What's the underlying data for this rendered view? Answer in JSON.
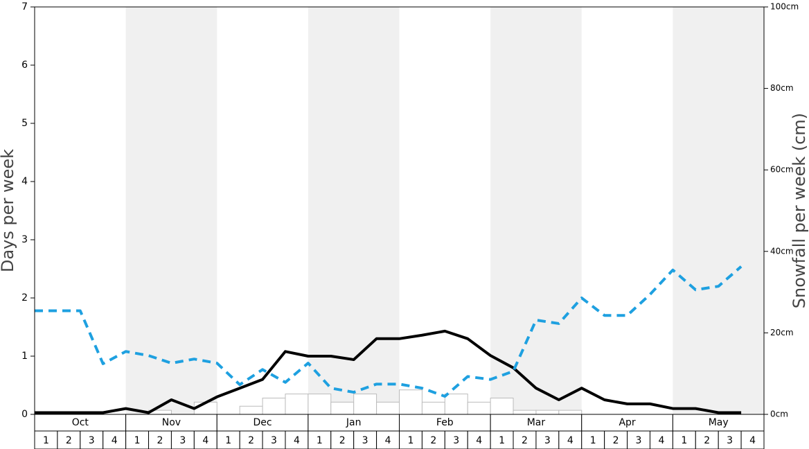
{
  "chart_data": {
    "type": "line",
    "y_label": "Days per week",
    "y2_label": "Snowfall per week (cm)",
    "months": [
      "Oct",
      "Nov",
      "Dec",
      "Jan",
      "Feb",
      "Mar",
      "Apr",
      "May"
    ],
    "categories": [
      "1",
      "2",
      "3",
      "4",
      "1",
      "2",
      "3",
      "4",
      "1",
      "2",
      "3",
      "4",
      "1",
      "2",
      "3",
      "4",
      "1",
      "2",
      "3",
      "4",
      "1",
      "2",
      "3",
      "4",
      "1",
      "2",
      "3",
      "4",
      "1",
      "2",
      "3",
      "4"
    ],
    "ylim": [
      0,
      7
    ],
    "yticks": [
      0,
      1,
      2,
      3,
      4,
      5,
      6,
      7
    ],
    "y2lim": [
      0,
      100
    ],
    "y2ticks": [
      {
        "value": 0,
        "label": "0cm"
      },
      {
        "value": 20,
        "label": "20cm"
      },
      {
        "value": 40,
        "label": "40cm"
      },
      {
        "value": 60,
        "label": "60cm"
      },
      {
        "value": 80,
        "label": "80cm"
      },
      {
        "value": 100,
        "label": "100cm"
      }
    ],
    "series": [
      {
        "kind": "bar",
        "axis": "y2",
        "color": "#ffffff",
        "values": [
          0,
          0,
          0,
          0,
          0,
          1,
          0,
          3,
          0,
          2,
          4,
          5,
          5,
          3,
          5,
          3,
          6,
          3,
          5,
          3,
          4,
          1,
          1,
          1,
          0,
          0,
          0,
          0,
          0,
          0,
          0,
          0
        ]
      },
      {
        "kind": "line",
        "color": "#000000",
        "values": [
          0.03,
          0.03,
          0.03,
          0.03,
          0.1,
          0.03,
          0.25,
          0.1,
          0.3,
          0.45,
          0.6,
          1.08,
          1.0,
          1.0,
          0.94,
          1.3,
          1.3,
          1.36,
          1.43,
          1.3,
          1.01,
          0.8,
          0.45,
          0.25,
          0.45,
          0.25,
          0.18,
          0.18,
          0.1,
          0.1,
          0.03,
          0.03
        ]
      },
      {
        "kind": "dashed",
        "color": "#1ea0e0",
        "values": [
          1.78,
          1.78,
          1.78,
          0.87,
          1.08,
          1.01,
          0.88,
          0.95,
          0.88,
          0.51,
          0.77,
          0.55,
          0.88,
          0.45,
          0.38,
          0.52,
          0.52,
          0.45,
          0.31,
          0.65,
          0.6,
          0.74,
          1.62,
          1.56,
          2.0,
          1.7,
          1.7,
          2.06,
          2.48,
          2.14,
          2.2,
          2.54
        ]
      }
    ]
  }
}
